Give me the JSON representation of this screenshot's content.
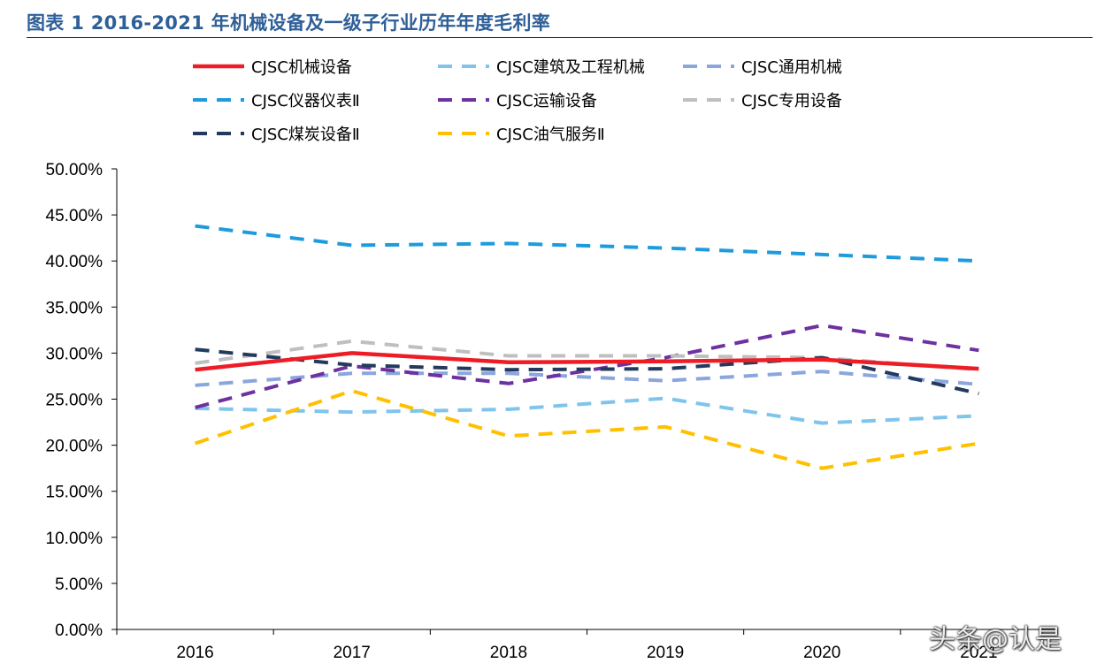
{
  "chart_data": {
    "type": "line",
    "title": "图表 1 2016-2021 年机械设备及一级子行业历年年度毛利率",
    "xlabel": "",
    "ylabel": "",
    "x": [
      "2016",
      "2017",
      "2018",
      "2019",
      "2020",
      "2021"
    ],
    "ylim": [
      0,
      50
    ],
    "yticks": [
      "0.00%",
      "5.00%",
      "10.00%",
      "15.00%",
      "20.00%",
      "25.00%",
      "30.00%",
      "35.00%",
      "40.00%",
      "45.00%",
      "50.00%"
    ],
    "grid": false,
    "legend_position": "top",
    "series": [
      {
        "name": "CJSC机械设备",
        "color": "#ee1c25",
        "style": "solid",
        "values": [
          28.2,
          30.0,
          29.0,
          29.1,
          29.3,
          28.3
        ]
      },
      {
        "name": "CJSC建筑及工程机械",
        "color": "#7ec4ec",
        "style": "dashed",
        "values": [
          24.0,
          23.6,
          23.9,
          25.1,
          22.4,
          23.2
        ]
      },
      {
        "name": "CJSC通用机械",
        "color": "#8aa6dc",
        "style": "dashed",
        "values": [
          26.5,
          27.8,
          27.8,
          27.0,
          28.0,
          26.6
        ]
      },
      {
        "name": "CJSC仪器仪表Ⅱ",
        "color": "#1e9bdc",
        "style": "dashed",
        "values": [
          43.8,
          41.7,
          41.9,
          41.4,
          40.7,
          40.0
        ]
      },
      {
        "name": "CJSC运输设备",
        "color": "#6d31a0",
        "style": "dashed",
        "values": [
          24.1,
          28.6,
          26.7,
          29.5,
          33.0,
          30.3
        ]
      },
      {
        "name": "CJSC专用设备",
        "color": "#bfbfbf",
        "style": "dashed",
        "values": [
          28.9,
          31.3,
          29.7,
          29.7,
          29.5,
          28.2
        ]
      },
      {
        "name": "CJSC煤炭设备Ⅱ",
        "color": "#233a5e",
        "style": "dashed",
        "values": [
          30.4,
          28.7,
          28.2,
          28.3,
          29.5,
          25.6
        ]
      },
      {
        "name": "CJSC油气服务Ⅱ",
        "color": "#ffc000",
        "style": "dashed",
        "values": [
          20.2,
          25.9,
          21.0,
          22.0,
          17.5,
          20.2
        ]
      }
    ]
  },
  "watermark": "头条@认是"
}
